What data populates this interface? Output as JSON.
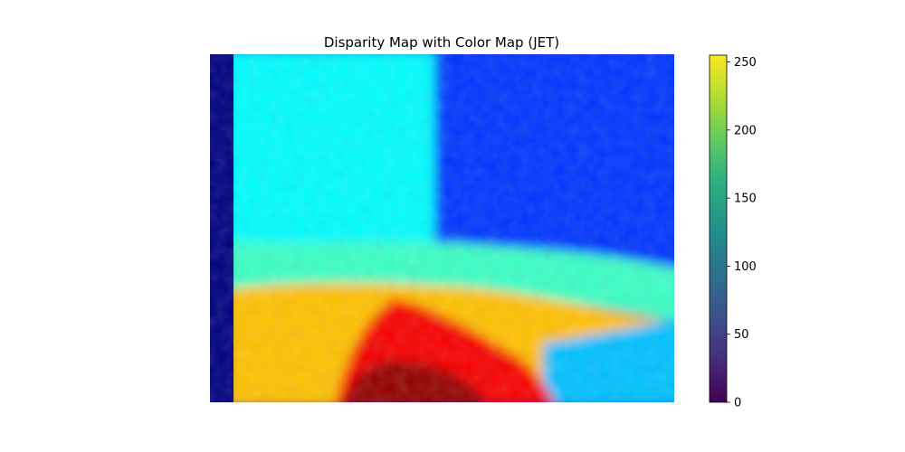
{
  "chart_data": {
    "type": "heatmap",
    "title": "Disparity Map with Color Map (JET)",
    "image_colormap": "jet",
    "axes_visible": false,
    "colorbar": {
      "colormap": "viridis",
      "range": [
        0,
        255
      ],
      "ticks": [
        0,
        50,
        100,
        150,
        200,
        250
      ],
      "tick_labels": [
        "0",
        "50",
        "100",
        "150",
        "200",
        "250"
      ]
    },
    "regions": [
      {
        "name": "left-border-band",
        "value": 0
      },
      {
        "name": "upper-left-background",
        "value": 95
      },
      {
        "name": "upper-right-background",
        "value": 45
      },
      {
        "name": "middle-band",
        "value": 110
      },
      {
        "name": "lower-left-region",
        "value": 175
      },
      {
        "name": "bottom-center-mound",
        "value": 225
      },
      {
        "name": "bottom-center-core",
        "value": 250
      },
      {
        "name": "lower-right-region",
        "value": 80
      }
    ]
  }
}
